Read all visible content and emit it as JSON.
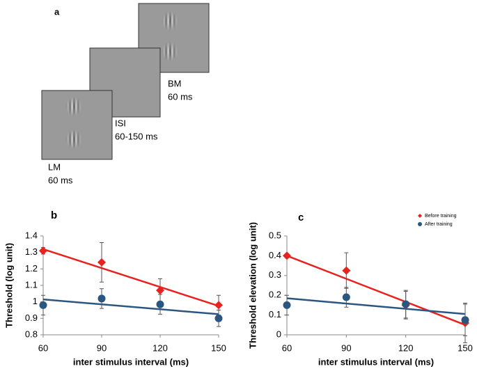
{
  "panel_a": {
    "label": "a",
    "frames": [
      {
        "name": "BM",
        "duration": "60 ms"
      },
      {
        "name": "ISI",
        "duration": "60-150 ms"
      },
      {
        "name": "LM",
        "duration": "60 ms"
      }
    ]
  },
  "chart_data": [
    {
      "type": "scatter",
      "panel_label": "b",
      "x_label": "inter stimulus interval (ms)",
      "y_label": "Threshold (log unit)",
      "x": [
        60,
        90,
        120,
        150
      ],
      "xlim": [
        60,
        150
      ],
      "xticks": [
        60,
        90,
        120,
        150
      ],
      "ylim": [
        0.8,
        1.4
      ],
      "yticks": [
        0.8,
        0.9,
        1,
        1.1,
        1.2,
        1.3,
        1.4
      ],
      "series": [
        {
          "color": "#e8231f",
          "marker": "diamond",
          "values": [
            1.31,
            1.24,
            1.07,
            0.98
          ],
          "errors": [
            0.02,
            0.12,
            0.07,
            0.06
          ],
          "trend": [
            1.32,
            0.975
          ]
        },
        {
          "color": "#2b5680",
          "marker": "circle",
          "values": [
            0.98,
            1.02,
            0.985,
            0.9
          ],
          "errors": [
            0.06,
            0.06,
            0.06,
            0.05
          ],
          "trend": [
            1.015,
            0.925
          ]
        }
      ]
    },
    {
      "type": "scatter",
      "panel_label": "c",
      "x_label": "inter stimulus interval (ms)",
      "y_label": "Threshold elevation (log unit)",
      "x": [
        60,
        90,
        120,
        150
      ],
      "xlim": [
        60,
        150
      ],
      "xticks": [
        60,
        90,
        120,
        150
      ],
      "ylim": [
        0,
        0.5
      ],
      "yticks": [
        0,
        0.1,
        0.2,
        0.3,
        0.4,
        0.5
      ],
      "legend": "top-right",
      "series": [
        {
          "name": "Before training",
          "color": "#e8231f",
          "marker": "diamond",
          "values": [
            0.4,
            0.325,
            0.15,
            0.06
          ],
          "errors": [
            0.01,
            0.09,
            0.07,
            0.1
          ],
          "trend": [
            0.4,
            0.05
          ]
        },
        {
          "name": "After training",
          "color": "#2b5680",
          "marker": "circle",
          "values": [
            0.15,
            0.19,
            0.155,
            0.075
          ],
          "errors": [
            0.05,
            0.05,
            0.07,
            0.08
          ],
          "trend": [
            0.185,
            0.105
          ]
        }
      ]
    }
  ]
}
